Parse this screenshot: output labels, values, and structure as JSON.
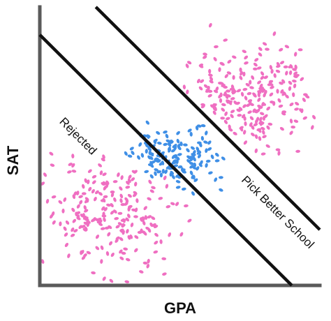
{
  "chart_data": {
    "type": "scatter",
    "title": "",
    "xlabel": "GPA",
    "ylabel": "SAT",
    "grid": false,
    "region_labels": [
      "Rejected",
      "Pick Better School"
    ],
    "colors": {
      "pink": "#ef6fc1",
      "blue": "#3f8fe6",
      "axis": "#5a5a5a",
      "boundary": "#111111"
    },
    "boundaries": [
      {
        "name": "rejection-line",
        "intercept": 0.9,
        "slope": -1.0
      },
      {
        "name": "better-school-line",
        "intercept": 1.2,
        "slope": -1.0
      }
    ],
    "series": [
      {
        "color": "#ef6fc1",
        "cluster": {
          "center": [
            0.25,
            0.26
          ],
          "spread": [
            0.13,
            0.1
          ],
          "count": 220,
          "range_x": [
            0.01,
            0.55
          ],
          "range_y": [
            0.01,
            0.5
          ]
        }
      },
      {
        "color": "#3f8fe6",
        "cluster": {
          "center": [
            0.48,
            0.46
          ],
          "spread": [
            0.09,
            0.06
          ],
          "count": 150,
          "range_x": [
            0.3,
            0.75
          ],
          "range_y": [
            0.28,
            0.64
          ]
        }
      },
      {
        "color": "#ef6fc1",
        "cluster": {
          "center": [
            0.72,
            0.66
          ],
          "spread": [
            0.12,
            0.1
          ],
          "count": 240,
          "range_x": [
            0.4,
            0.98
          ],
          "range_y": [
            0.42,
            0.99
          ]
        }
      }
    ]
  }
}
